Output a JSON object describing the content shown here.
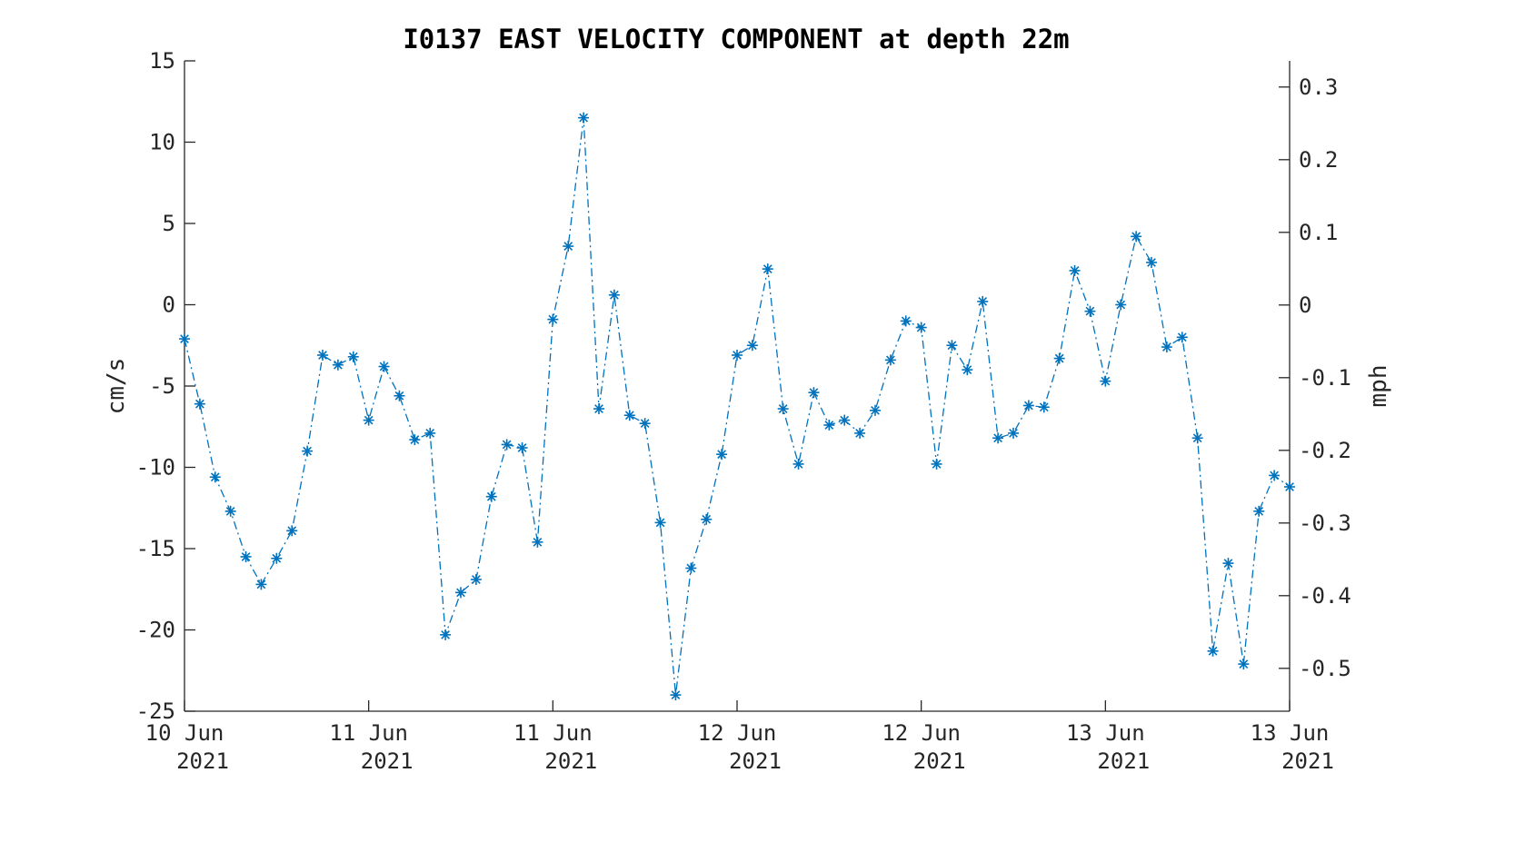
{
  "chart_data": {
    "type": "line",
    "title": "I0137 EAST VELOCITY COMPONENT at depth 22m",
    "ylabel": "cm/s",
    "ylabel_right": "mph",
    "xlim": [
      0,
      72
    ],
    "ylim": [
      -25,
      15
    ],
    "ylim_right_mph": [
      -0.559,
      0.336
    ],
    "yticks": [
      -25,
      -20,
      -15,
      -10,
      -5,
      0,
      5,
      10,
      15
    ],
    "yticks_right": [
      -0.5,
      -0.4,
      -0.3,
      -0.2,
      -0.1,
      0,
      0.1,
      0.2,
      0.3
    ],
    "yticks_right_labels": [
      "-0.5",
      "-0.4",
      "-0.3",
      "-0.2",
      "-0.1",
      "0",
      "0.1",
      "0.2",
      "0.3"
    ],
    "xticks": [
      0,
      12,
      24,
      36,
      48,
      60,
      72
    ],
    "xtick_labels": [
      [
        "10 Jun",
        "2021"
      ],
      [
        "11 Jun",
        "2021"
      ],
      [
        "11 Jun",
        "2021"
      ],
      [
        "12 Jun",
        "2021"
      ],
      [
        "12 Jun",
        "2021"
      ],
      [
        "13 Jun",
        "2021"
      ],
      [
        "13 Jun",
        "2021"
      ]
    ],
    "grid": false,
    "marker": "asterisk",
    "line_style": "dash-dot",
    "color": "#0072BD",
    "series": [
      {
        "x": [
          0,
          1,
          2,
          3,
          4,
          5,
          6,
          7,
          8,
          9,
          10,
          11,
          12,
          13,
          14,
          15,
          16,
          17,
          18,
          19,
          20,
          21,
          22,
          23,
          24,
          25,
          26,
          27,
          28,
          29,
          30,
          31,
          32,
          33,
          34,
          35,
          36,
          37,
          38,
          39,
          40,
          41,
          42,
          43,
          44,
          45,
          46,
          47,
          48,
          49,
          50,
          51,
          52,
          53,
          54,
          55,
          56,
          57,
          58,
          59,
          60,
          61,
          62,
          63,
          64,
          65,
          66,
          67,
          68,
          69,
          70,
          71,
          72
        ],
        "values": [
          -2.1,
          -6.1,
          -10.6,
          -12.7,
          -15.5,
          -17.2,
          -15.6,
          -13.9,
          -9.0,
          -3.1,
          -3.7,
          -3.2,
          -7.1,
          -3.8,
          -5.6,
          -8.3,
          -7.9,
          -20.3,
          -17.7,
          -16.9,
          -11.8,
          -8.6,
          -8.8,
          -14.6,
          -0.9,
          3.6,
          11.5,
          -6.4,
          0.6,
          -6.8,
          -7.3,
          -13.4,
          -24.0,
          -16.2,
          -13.2,
          -9.2,
          -3.1,
          -2.5,
          2.2,
          -6.4,
          -9.8,
          -5.4,
          -7.4,
          -7.1,
          -7.9,
          -6.5,
          -3.4,
          -1.0,
          -1.4,
          -9.8,
          -2.5,
          -4.0,
          0.2,
          -8.2,
          -7.9,
          -6.2,
          -6.3,
          -3.3,
          2.1,
          -0.4,
          -4.7,
          0.0,
          4.2,
          2.6,
          -2.6,
          -2.0,
          -8.2,
          -21.3,
          -15.9,
          -22.1,
          -12.7,
          -10.5,
          -11.2
        ]
      }
    ]
  }
}
